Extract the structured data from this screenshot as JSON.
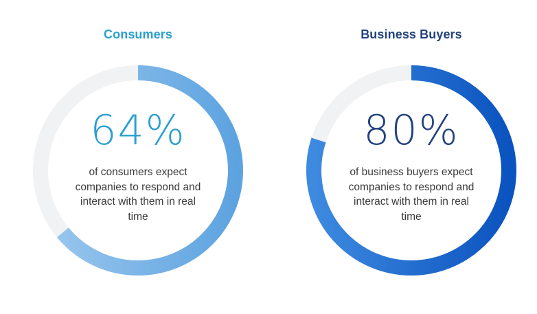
{
  "chart_data": [
    {
      "type": "donut",
      "title": "Consumers",
      "value": 64,
      "value_label": "64%",
      "description": "of consumers expect companies to respond and interact with them in real time",
      "colors": {
        "title": "#2a9fd0",
        "value_text": "#2a9fd0",
        "arc_start": "#9cc8ee",
        "arc_end": "#5da3e0",
        "track": "#f1f2f4"
      }
    },
    {
      "type": "donut",
      "title": "Business Buyers",
      "value": 80,
      "value_label": "80%",
      "description": "of business buyers expect companies to respond and interact with them in real time",
      "colors": {
        "title": "#23427f",
        "value_text": "#23427f",
        "arc_start": "#3e8ae0",
        "arc_end": "#0b53bf",
        "track": "#f1f2f4"
      }
    }
  ]
}
